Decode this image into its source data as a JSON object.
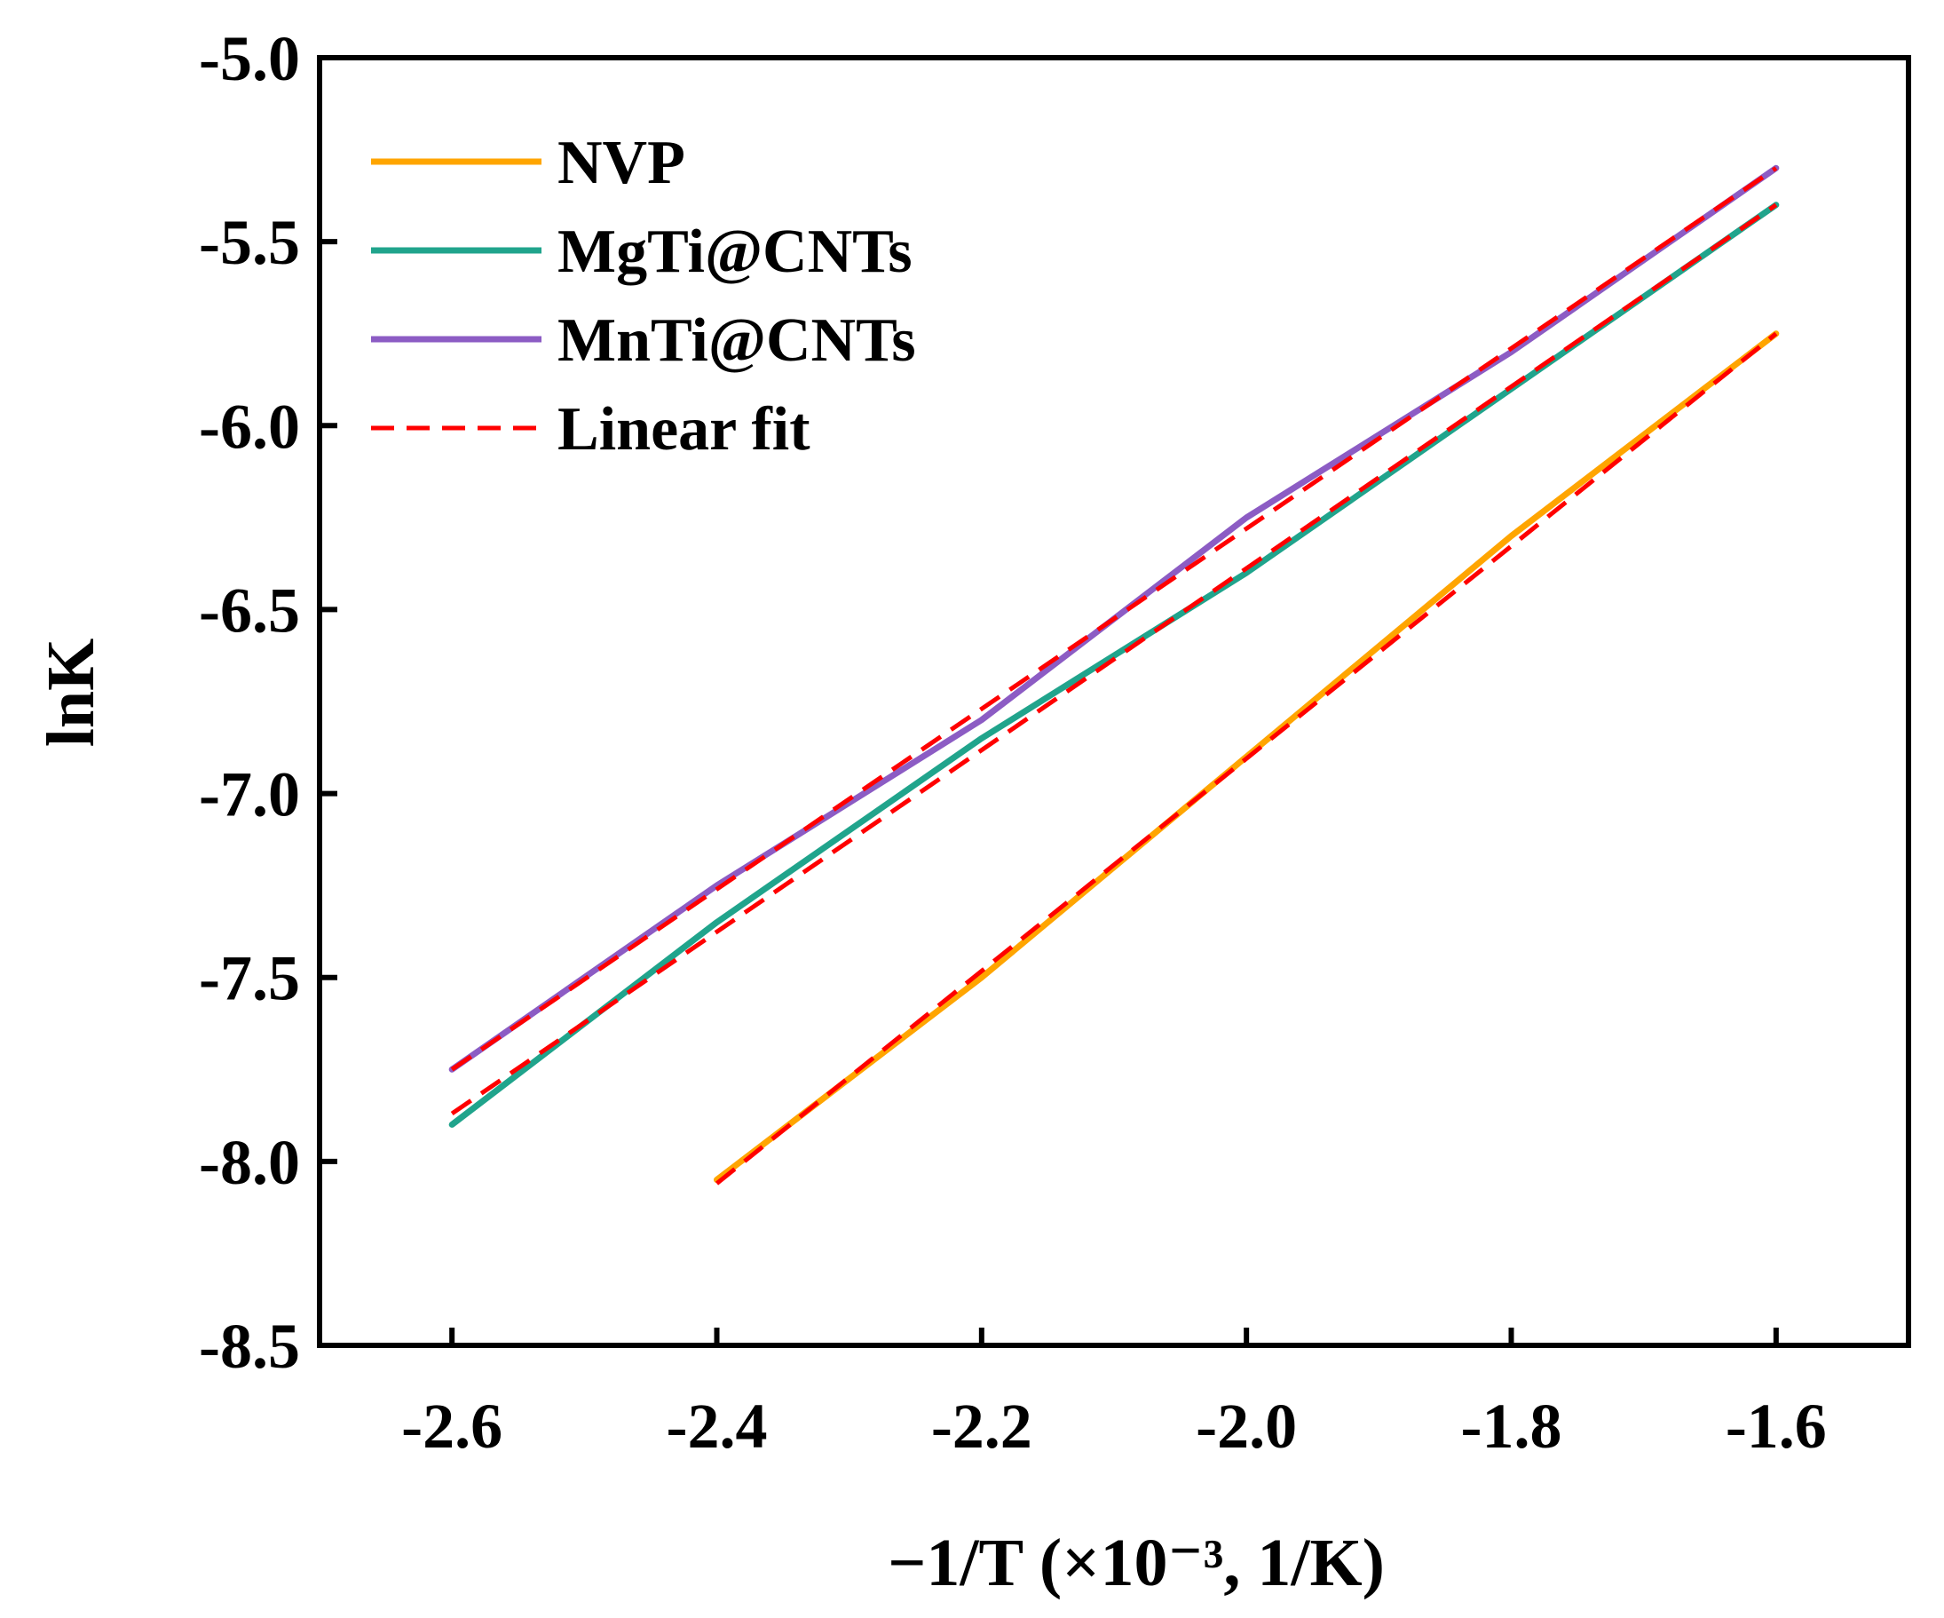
{
  "chart_data": {
    "type": "line",
    "title": "",
    "xlabel": "−1/T (×10⁻³, 1/K)",
    "ylabel": "lnK",
    "xlim": [
      -2.7,
      -1.5
    ],
    "ylim": [
      -8.5,
      -5.0
    ],
    "xticks": [
      -2.6,
      -2.4,
      -2.2,
      -2.0,
      -1.8,
      -1.6
    ],
    "xtick_labels": [
      "-2.6",
      "-2.4",
      "-2.2",
      "-2.0",
      "-1.8",
      "-1.6"
    ],
    "yticks": [
      -5.0,
      -5.5,
      -6.0,
      -6.5,
      -7.0,
      -7.5,
      -8.0,
      -8.5
    ],
    "ytick_labels": [
      "-5.0",
      "-5.5",
      "-6.0",
      "-6.5",
      "-7.0",
      "-7.5",
      "-8.0",
      "-8.5"
    ],
    "grid": false,
    "legend_position": "top-left",
    "series": [
      {
        "name": "NVP",
        "color": "#FFA500",
        "style": "solid",
        "x": [
          -2.4,
          -2.2,
          -2.0,
          -1.8,
          -1.6
        ],
        "y": [
          -8.05,
          -7.5,
          -6.9,
          -6.3,
          -5.75
        ]
      },
      {
        "name": "MgTi@CNTs",
        "color": "#20A48C",
        "style": "solid",
        "x": [
          -2.6,
          -2.4,
          -2.2,
          -2.0,
          -1.8,
          -1.6
        ],
        "y": [
          -7.9,
          -7.35,
          -6.85,
          -6.4,
          -5.9,
          -5.4
        ]
      },
      {
        "name": "MnTi@CNTs",
        "color": "#8C5CC4",
        "style": "solid",
        "x": [
          -2.6,
          -2.4,
          -2.2,
          -2.0,
          -1.8,
          -1.6
        ],
        "y": [
          -7.75,
          -7.25,
          -6.8,
          -6.25,
          -5.8,
          -5.3
        ]
      },
      {
        "name": "Linear fit",
        "color": "#FF0000",
        "style": "dashed",
        "legend_only": true,
        "x": [],
        "y": []
      }
    ],
    "fits": [
      {
        "of": "NVP",
        "x": [
          -2.4,
          -1.6
        ],
        "y": [
          -8.06,
          -5.75
        ]
      },
      {
        "of": "MgTi@CNTs",
        "x": [
          -2.6,
          -1.6
        ],
        "y": [
          -7.87,
          -5.4
        ]
      },
      {
        "of": "MnTi@CNTs",
        "x": [
          -2.6,
          -1.6
        ],
        "y": [
          -7.75,
          -5.3
        ]
      }
    ]
  }
}
